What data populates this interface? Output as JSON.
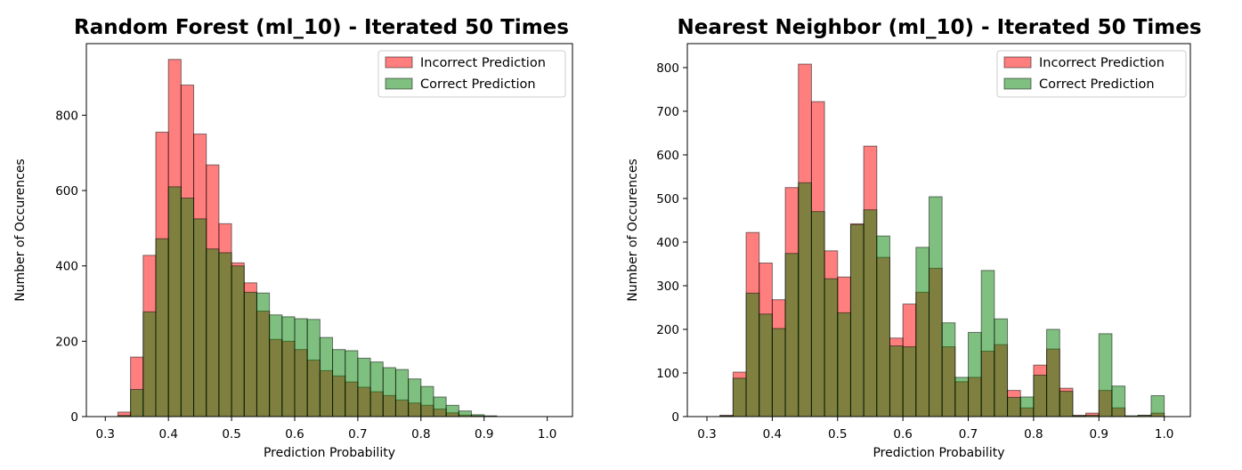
{
  "chart_data": [
    {
      "type": "bar",
      "title": "Random Forest (ml_10) - Iterated 50 Times",
      "xlabel": "Prediction Probability",
      "ylabel": "Number of Occurences",
      "xlim": [
        0.27,
        1.04
      ],
      "ylim": [
        0,
        990
      ],
      "xticks": [
        "0.3",
        "0.4",
        "0.5",
        "0.6",
        "0.7",
        "0.8",
        "0.9",
        "1.0"
      ],
      "yticks": [
        "0",
        "200",
        "400",
        "600",
        "800"
      ],
      "legend_position": "top-right",
      "bin_start": 0.3,
      "bin_width": 0.02,
      "series": [
        {
          "name": "Incorrect Prediction",
          "color": "#ff0000",
          "values": [
            0,
            12,
            158,
            428,
            755,
            948,
            880,
            750,
            668,
            512,
            408,
            355,
            280,
            205,
            200,
            178,
            150,
            122,
            108,
            92,
            78,
            66,
            56,
            44,
            36,
            30,
            20,
            10,
            4,
            2,
            1,
            0,
            0,
            0,
            0
          ]
        },
        {
          "name": "Correct Prediction",
          "color": "#008000",
          "values": [
            0,
            3,
            72,
            278,
            472,
            610,
            580,
            525,
            445,
            435,
            400,
            330,
            328,
            270,
            265,
            260,
            258,
            210,
            178,
            175,
            155,
            145,
            130,
            125,
            100,
            80,
            52,
            30,
            15,
            5,
            2,
            0,
            0,
            0,
            0
          ]
        }
      ]
    },
    {
      "type": "bar",
      "title": "Nearest Neighbor (ml_10) - Iterated 50 Times",
      "xlabel": "Prediction Probability",
      "ylabel": "Number of Occurences",
      "xlim": [
        0.27,
        1.04
      ],
      "ylim": [
        0,
        855
      ],
      "xticks": [
        "0.3",
        "0.4",
        "0.5",
        "0.6",
        "0.7",
        "0.8",
        "0.9",
        "1.0"
      ],
      "yticks": [
        "0",
        "100",
        "200",
        "300",
        "400",
        "500",
        "600",
        "700",
        "800"
      ],
      "legend_position": "top-right",
      "bin_start": 0.3,
      "bin_width": 0.02,
      "series": [
        {
          "name": "Incorrect Prediction",
          "color": "#ff0000",
          "values": [
            0,
            3,
            102,
            422,
            352,
            268,
            525,
            808,
            722,
            380,
            320,
            442,
            620,
            365,
            180,
            258,
            285,
            340,
            160,
            80,
            90,
            150,
            165,
            60,
            20,
            118,
            155,
            65,
            3,
            8,
            60,
            20,
            0,
            3,
            8
          ]
        },
        {
          "name": "Correct Prediction",
          "color": "#008000",
          "values": [
            0,
            2,
            88,
            283,
            235,
            202,
            374,
            536,
            470,
            316,
            238,
            440,
            474,
            414,
            162,
            160,
            388,
            504,
            215,
            90,
            193,
            335,
            224,
            44,
            45,
            95,
            200,
            58,
            2,
            3,
            190,
            70,
            2,
            3,
            48
          ]
        }
      ]
    }
  ]
}
